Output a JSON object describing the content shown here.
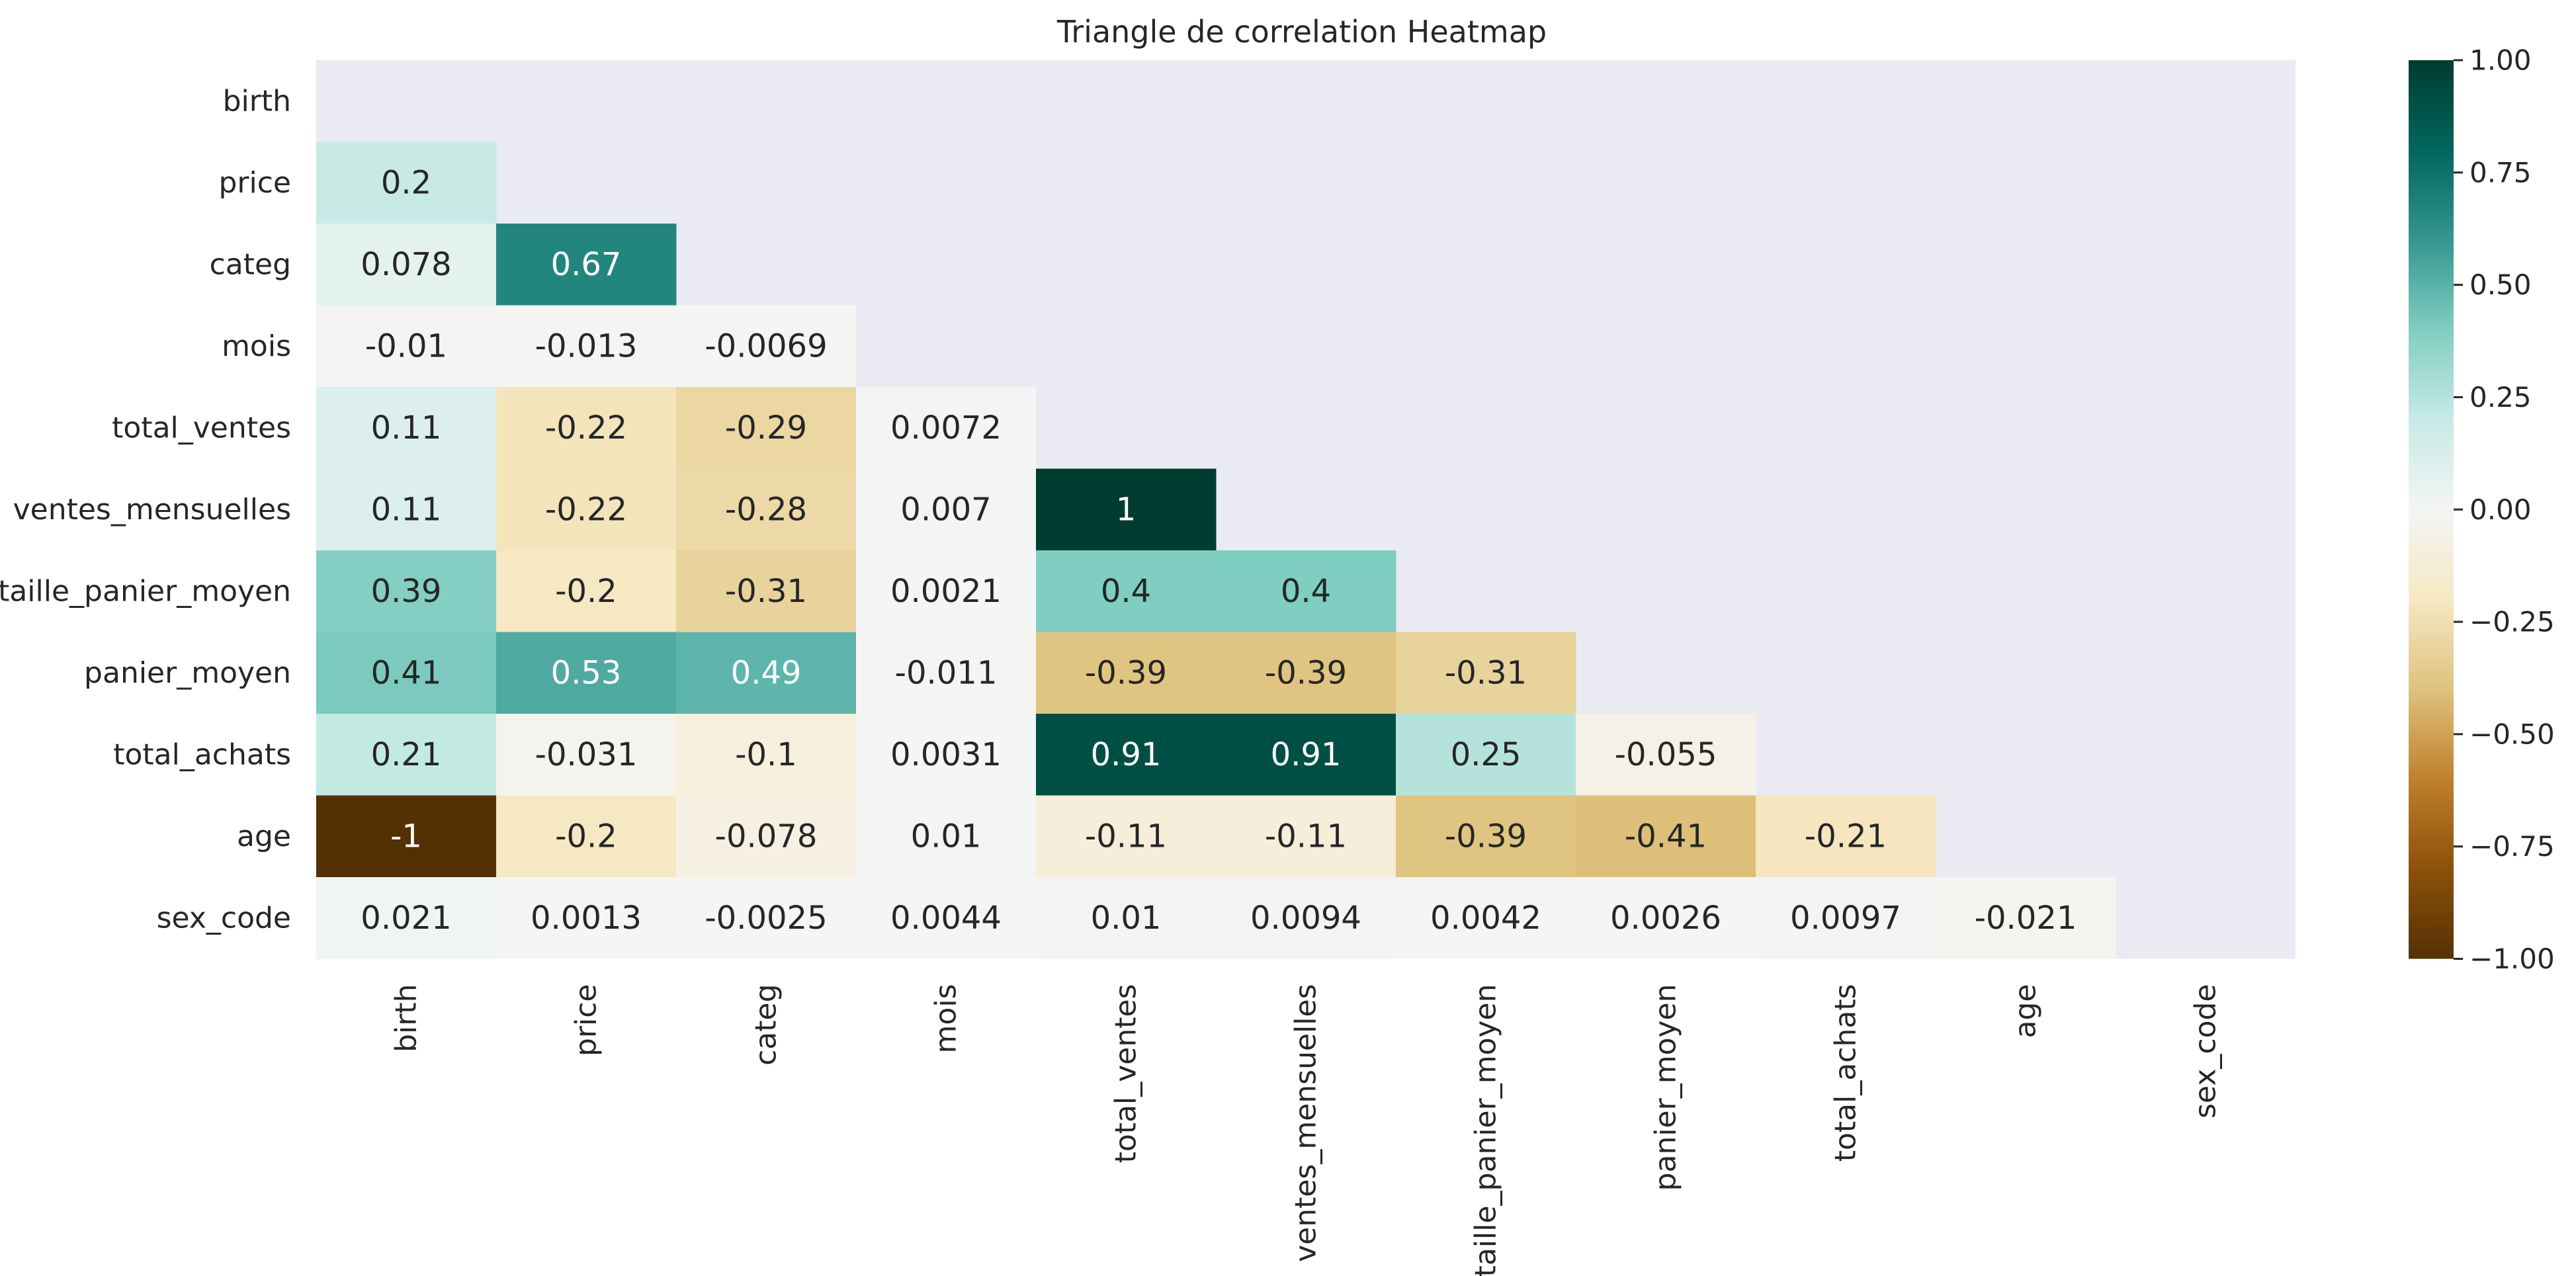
{
  "chart_data": {
    "type": "heatmap",
    "title": "Triangle de correlation Heatmap",
    "variables": [
      "birth",
      "price",
      "categ",
      "mois",
      "total_ventes",
      "ventes_mensuelles",
      "taille_panier_moyen",
      "panier_moyen",
      "total_achats",
      "age",
      "sex_code"
    ],
    "mask": "upper-triangle-including-diagonal",
    "values": [
      [
        null,
        null,
        null,
        null,
        null,
        null,
        null,
        null,
        null,
        null,
        null
      ],
      [
        0.2,
        null,
        null,
        null,
        null,
        null,
        null,
        null,
        null,
        null,
        null
      ],
      [
        0.078,
        0.67,
        null,
        null,
        null,
        null,
        null,
        null,
        null,
        null,
        null
      ],
      [
        -0.01,
        -0.013,
        -0.0069,
        null,
        null,
        null,
        null,
        null,
        null,
        null,
        null
      ],
      [
        0.11,
        -0.22,
        -0.29,
        0.0072,
        null,
        null,
        null,
        null,
        null,
        null,
        null
      ],
      [
        0.11,
        -0.22,
        -0.28,
        0.007,
        1,
        null,
        null,
        null,
        null,
        null,
        null
      ],
      [
        0.39,
        -0.2,
        -0.31,
        0.0021,
        0.4,
        0.4,
        null,
        null,
        null,
        null,
        null
      ],
      [
        0.41,
        0.53,
        0.49,
        -0.011,
        -0.39,
        -0.39,
        -0.31,
        null,
        null,
        null,
        null
      ],
      [
        0.21,
        -0.031,
        -0.1,
        0.0031,
        0.91,
        0.91,
        0.25,
        -0.055,
        null,
        null,
        null
      ],
      [
        -1,
        -0.2,
        -0.078,
        0.01,
        -0.11,
        -0.11,
        -0.39,
        -0.41,
        -0.21,
        null,
        null
      ],
      [
        0.021,
        0.0013,
        -0.0025,
        0.0044,
        0.01,
        0.0094,
        0.0042,
        0.0026,
        0.0097,
        -0.021,
        null
      ]
    ],
    "annotations": [
      [
        "",
        "",
        "",
        "",
        "",
        "",
        "",
        "",
        "",
        "",
        ""
      ],
      [
        "0.2",
        "",
        "",
        "",
        "",
        "",
        "",
        "",
        "",
        "",
        ""
      ],
      [
        "0.078",
        "0.67",
        "",
        "",
        "",
        "",
        "",
        "",
        "",
        "",
        ""
      ],
      [
        "-0.01",
        "-0.013",
        "-0.0069",
        "",
        "",
        "",
        "",
        "",
        "",
        "",
        ""
      ],
      [
        "0.11",
        "-0.22",
        "-0.29",
        "0.0072",
        "",
        "",
        "",
        "",
        "",
        "",
        ""
      ],
      [
        "0.11",
        "-0.22",
        "-0.28",
        "0.007",
        "1",
        "",
        "",
        "",
        "",
        "",
        ""
      ],
      [
        "0.39",
        "-0.2",
        "-0.31",
        "0.0021",
        "0.4",
        "0.4",
        "",
        "",
        "",
        "",
        ""
      ],
      [
        "0.41",
        "0.53",
        "0.49",
        "-0.011",
        "-0.39",
        "-0.39",
        "-0.31",
        "",
        "",
        "",
        ""
      ],
      [
        "0.21",
        "-0.031",
        "-0.1",
        "0.0031",
        "0.91",
        "0.91",
        "0.25",
        "-0.055",
        "",
        "",
        ""
      ],
      [
        "-1",
        "-0.2",
        "-0.078",
        "0.01",
        "-0.11",
        "-0.11",
        "-0.39",
        "-0.41",
        "-0.21",
        "",
        ""
      ],
      [
        "0.021",
        "0.0013",
        "-0.0025",
        "0.0044",
        "0.01",
        "0.0094",
        "0.0042",
        "0.0026",
        "0.0097",
        "-0.021",
        ""
      ]
    ],
    "colormap": "BrBG",
    "vmin": -1,
    "vmax": 1,
    "colorbar": {
      "ticks": [
        1,
        0.75,
        0.5,
        0.25,
        0,
        -0.25,
        -0.5,
        -0.75,
        -1
      ],
      "tick_labels": [
        "1.00",
        "0.75",
        "0.50",
        "0.25",
        "0.00",
        "−0.25",
        "−0.50",
        "−0.75",
        "−1.00"
      ]
    },
    "grid": false,
    "colors": {
      "plot_background": "#eaeaf2",
      "text_dark": "#262626",
      "text_light": "#ffffff"
    }
  }
}
